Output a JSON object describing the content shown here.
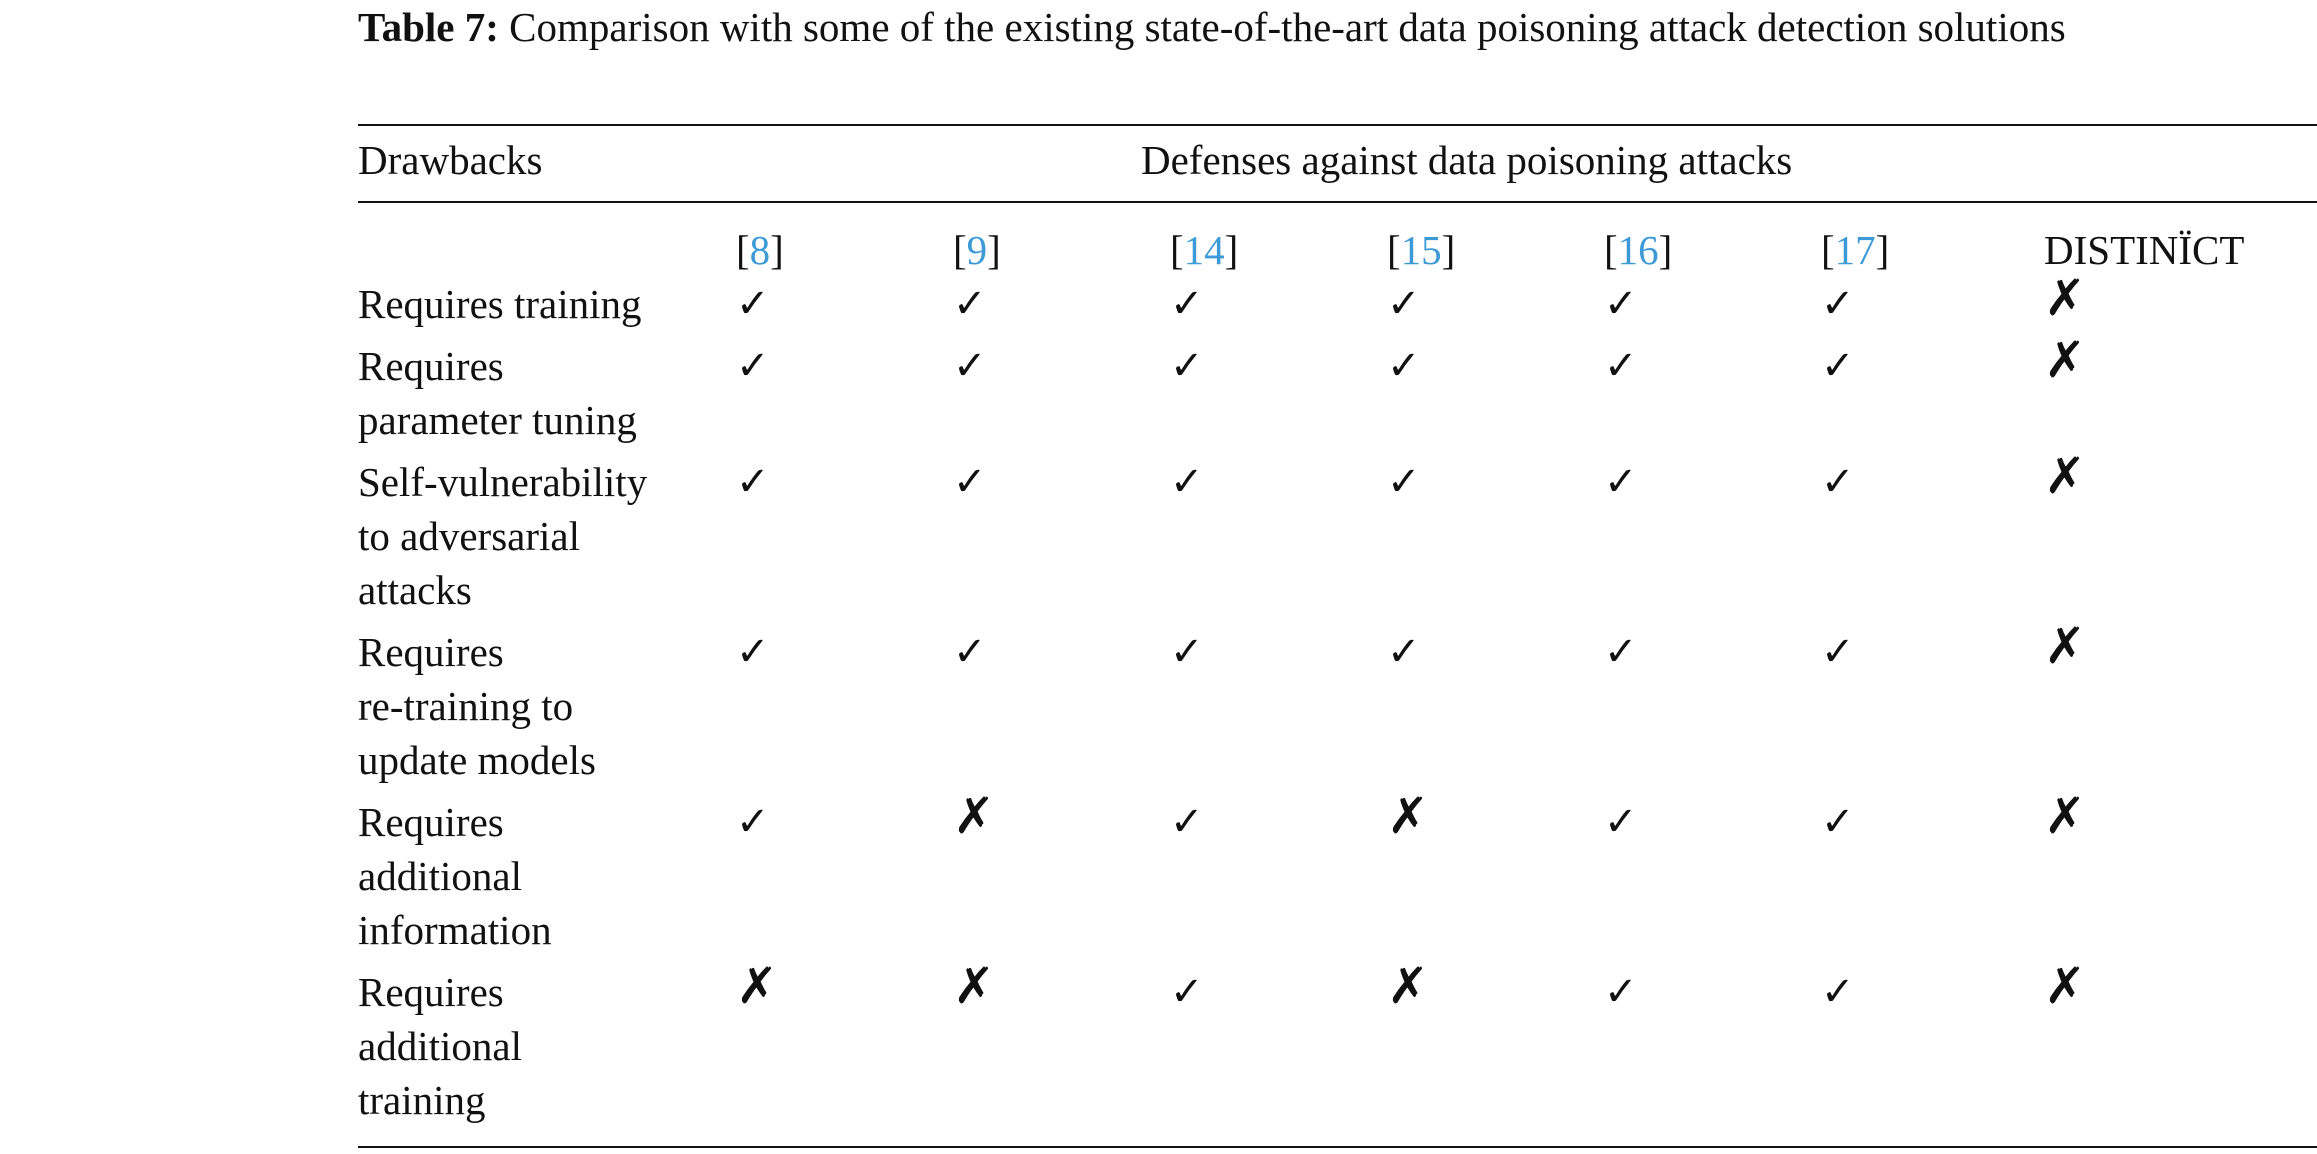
{
  "caption": {
    "label": "Table 7:",
    "text": "Comparison with some of the existing state-of-the-art data poisoning attack detection solutions"
  },
  "table": {
    "row_header": "Drawbacks",
    "group_header": "Defenses against data poisoning attacks",
    "columns": [
      {
        "ref": "8",
        "linked": true
      },
      {
        "ref": "9",
        "linked": true
      },
      {
        "ref": "14",
        "linked": true
      },
      {
        "ref": "15",
        "linked": true
      },
      {
        "ref": "16",
        "linked": true
      },
      {
        "ref": "17",
        "linked": true
      },
      {
        "ref": "DISTINÏCT",
        "linked": false
      }
    ],
    "rows": [
      {
        "lines": [
          "Requires training"
        ],
        "marks": [
          "check",
          "check",
          "check",
          "check",
          "check",
          "check",
          "cross"
        ]
      },
      {
        "lines": [
          "Requires",
          "parameter tuning"
        ],
        "marks": [
          "check",
          "check",
          "check",
          "check",
          "check",
          "check",
          "cross"
        ]
      },
      {
        "lines": [
          "Self-vulnerability",
          "to adversarial",
          "attacks"
        ],
        "marks": [
          "check",
          "check",
          "check",
          "check",
          "check",
          "check",
          "cross"
        ]
      },
      {
        "lines": [
          "Requires",
          "re-training to",
          "update models"
        ],
        "marks": [
          "check",
          "check",
          "check",
          "check",
          "check",
          "check",
          "cross"
        ]
      },
      {
        "lines": [
          "Requires",
          "additional",
          "information"
        ],
        "marks": [
          "check",
          "cross",
          "check",
          "cross",
          "check",
          "check",
          "cross"
        ]
      },
      {
        "lines": [
          "Requires",
          "additional",
          "training"
        ],
        "marks": [
          "cross",
          "cross",
          "check",
          "cross",
          "check",
          "check",
          "cross"
        ]
      }
    ],
    "symbols": {
      "check": "✓",
      "cross": "✗"
    },
    "link_color": "#3c9ad6"
  }
}
